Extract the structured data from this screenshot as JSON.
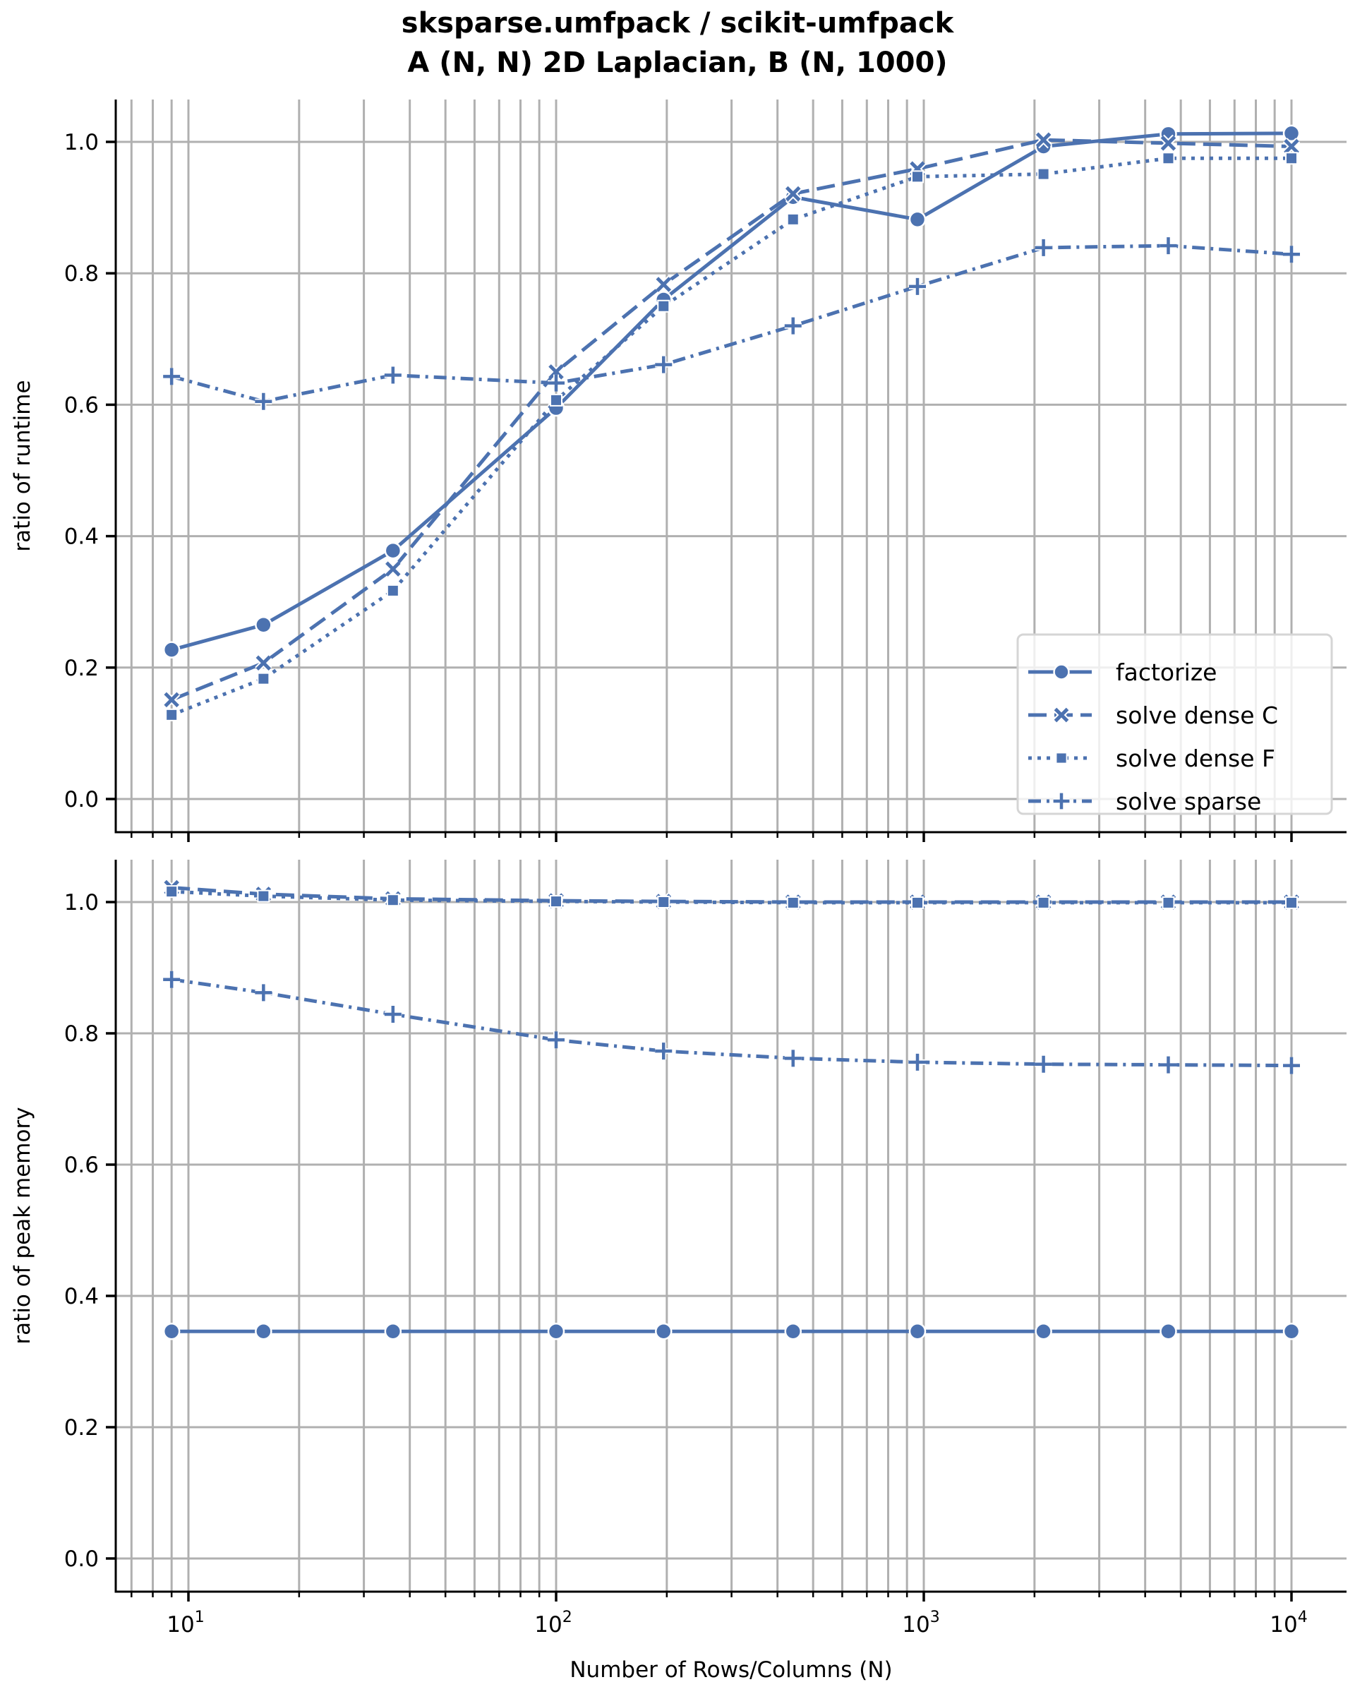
{
  "chart_data": {
    "type": "line",
    "title_lines": [
      "sksparse.umfpack / scikit-umfpack",
      "A (N, N) 2D Laplacian, B (N, 1000)"
    ],
    "xlabel": "Number of Rows/Columns (N)",
    "xscale": "log",
    "xlim": [
      6.3,
      13500
    ],
    "x_major_ticks": [
      10,
      100,
      1000,
      10000
    ],
    "x_tick_labels": [
      {
        "base": "10",
        "exp": "1"
      },
      {
        "base": "10",
        "exp": "2"
      },
      {
        "base": "10",
        "exp": "3"
      },
      {
        "base": "10",
        "exp": "4"
      }
    ],
    "x": [
      9,
      16,
      36,
      100,
      196,
      441,
      961,
      2116,
      4624,
      10000
    ],
    "grid": true,
    "color": "#4c72b0",
    "legend": {
      "location": "lower-right of top panel",
      "entries": [
        "factorize",
        "solve dense C",
        "solve dense F",
        "solve sparse"
      ]
    },
    "panels": [
      {
        "name": "runtime",
        "ylabel": "ratio of runtime",
        "ylim": [
          -0.05,
          1.065
        ],
        "y_ticks": [
          0.0,
          0.2,
          0.4,
          0.6,
          0.8,
          1.0
        ],
        "y_tick_labels": [
          "0.0",
          "0.2",
          "0.4",
          "0.6",
          "0.8",
          "1.0"
        ],
        "series": [
          {
            "name": "factorize",
            "marker": "circle",
            "linestyle": "solid",
            "values": [
              0.227,
              0.265,
              0.378,
              0.595,
              0.76,
              0.916,
              0.882,
              0.993,
              1.012,
              1.013
            ]
          },
          {
            "name": "solve dense C",
            "marker": "x",
            "linestyle": "dashed",
            "values": [
              0.151,
              0.207,
              0.35,
              0.65,
              0.783,
              0.921,
              0.959,
              1.003,
              0.998,
              0.993
            ]
          },
          {
            "name": "solve dense F",
            "marker": "square",
            "linestyle": "dotted",
            "values": [
              0.128,
              0.183,
              0.317,
              0.607,
              0.75,
              0.882,
              0.947,
              0.951,
              0.975,
              0.975
            ]
          },
          {
            "name": "solve sparse",
            "marker": "plus",
            "linestyle": "dashdot",
            "values": [
              0.643,
              0.605,
              0.645,
              0.633,
              0.661,
              0.72,
              0.78,
              0.839,
              0.842,
              0.829
            ]
          }
        ]
      },
      {
        "name": "peak-memory",
        "ylabel": "ratio of peak memory",
        "ylim": [
          -0.05,
          1.065
        ],
        "y_ticks": [
          0.0,
          0.2,
          0.4,
          0.6,
          0.8,
          1.0
        ],
        "y_tick_labels": [
          "0.0",
          "0.2",
          "0.4",
          "0.6",
          "0.8",
          "1.0"
        ],
        "series": [
          {
            "name": "factorize",
            "marker": "circle",
            "linestyle": "solid",
            "values": [
              0.346,
              0.346,
              0.346,
              0.346,
              0.346,
              0.346,
              0.346,
              0.346,
              0.346,
              0.346
            ]
          },
          {
            "name": "solve dense C",
            "marker": "x",
            "linestyle": "dashed",
            "values": [
              1.022,
              1.012,
              1.005,
              1.002,
              1.001,
              1.0,
              1.0,
              1.0,
              1.0,
              1.0
            ]
          },
          {
            "name": "solve dense F",
            "marker": "square",
            "linestyle": "dotted",
            "values": [
              1.016,
              1.009,
              1.003,
              1.001,
              1.0,
              0.999,
              0.999,
              0.999,
              0.999,
              0.999
            ]
          },
          {
            "name": "solve sparse",
            "marker": "plus",
            "linestyle": "dashdot",
            "values": [
              0.882,
              0.862,
              0.829,
              0.79,
              0.773,
              0.762,
              0.756,
              0.753,
              0.752,
              0.751
            ]
          }
        ]
      }
    ]
  }
}
